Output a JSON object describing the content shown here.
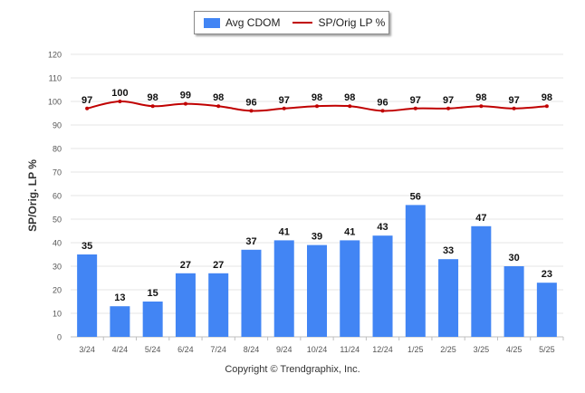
{
  "legend": {
    "bar_label": "Avg CDOM",
    "line_label": "SP/Orig LP %"
  },
  "credit": "Copyright © Trendgraphix, Inc.",
  "colors": {
    "bar": "#4285f4",
    "line": "#c00000",
    "grid": "#e6e6e6",
    "axis": "#bfbfbf"
  },
  "chart_data": {
    "type": "bar",
    "categories": [
      "3/24",
      "4/24",
      "5/24",
      "6/24",
      "7/24",
      "8/24",
      "9/24",
      "10/24",
      "11/24",
      "12/24",
      "1/25",
      "2/25",
      "3/25",
      "4/25",
      "5/25"
    ],
    "series": [
      {
        "name": "Avg CDOM",
        "type": "bar",
        "values": [
          35,
          13,
          15,
          27,
          27,
          37,
          41,
          39,
          41,
          43,
          56,
          33,
          47,
          30,
          23
        ]
      },
      {
        "name": "SP/Orig LP %",
        "type": "line",
        "values": [
          97,
          100,
          98,
          99,
          98,
          96,
          97,
          98,
          98,
          96,
          97,
          97,
          98,
          97,
          98
        ]
      }
    ],
    "ylabel": "SP/Orig. LP %",
    "ylim": [
      0,
      120
    ],
    "yticks": [
      0,
      10,
      20,
      30,
      40,
      50,
      60,
      70,
      80,
      90,
      100,
      110,
      120
    ],
    "grid": true,
    "legend_position": "top-center"
  }
}
